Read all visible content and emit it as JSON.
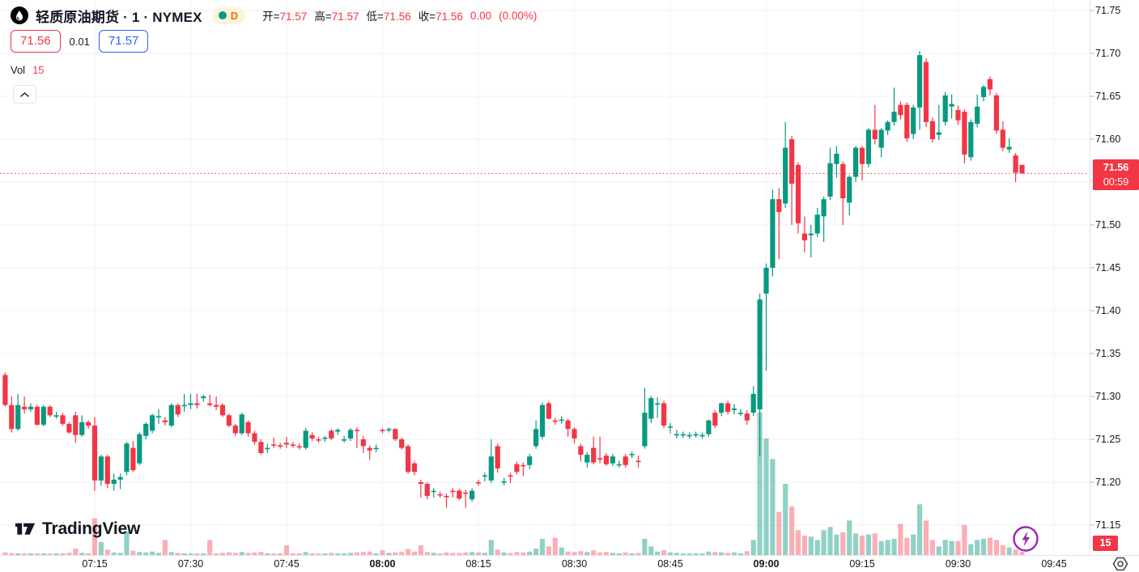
{
  "header": {
    "symbol_title": "轻质原油期货 · 1 · NYMEX",
    "data_mode_badge": "D",
    "ohlc": {
      "open_label": "开=",
      "open": "71.57",
      "high_label": "高=",
      "high": "71.57",
      "low_label": "低=",
      "low": "71.56",
      "close_label": "收=",
      "close": "71.56",
      "change": "0.00",
      "change_pct": "(0.00%)"
    },
    "sell_price": "71.56",
    "spread": "0.01",
    "buy_price": "71.57",
    "vol_label": "Vol",
    "vol_value": "15"
  },
  "watermark": {
    "brand": "TradingView"
  },
  "icons": {
    "symbol_logo": "oil-drop-icon",
    "market_status": "green-dot-icon",
    "collapse": "chevron-up-icon",
    "quick_trade": "lightning-bolt-icon",
    "axis_corner": "hexagon-target-icon"
  },
  "price_axis": {
    "labels": [
      "71.75",
      "71.70",
      "71.65",
      "71.60",
      "71.50",
      "71.45",
      "71.40",
      "71.35",
      "71.30",
      "71.25",
      "71.20",
      "71.15"
    ],
    "current_price": "71.56",
    "countdown": "00:59",
    "current_volume": "15"
  },
  "time_axis": {
    "labels": [
      "07:15",
      "07:30",
      "07:45",
      "08:00",
      "08:15",
      "08:30",
      "08:45",
      "09:00",
      "09:15",
      "09:30",
      "09:45"
    ],
    "bold_labels": [
      "08:00",
      "09:00"
    ]
  },
  "colors": {
    "up": "#089981",
    "down": "#f23645",
    "vol_up": "rgba(8,153,129,0.45)",
    "vol_down": "rgba(242,54,69,0.4)",
    "grid": "#f0f2f7",
    "axis_border": "#e0e3eb",
    "axis_text": "#131722",
    "price_line": "#f23645",
    "buy_blue": "#2962ff",
    "badge_orange": "#ee7100",
    "accent_purple": "#9c27b0"
  },
  "chart_data": {
    "type": "candlestick_with_volume",
    "symbol": "轻质原油期货",
    "exchange": "NYMEX",
    "interval": "1 minute",
    "title": "轻质原油期货 · 1 · NYMEX",
    "price_axis_range": [
      71.13,
      71.76
    ],
    "grid_step": 0.05,
    "start_time": "07:01",
    "interval_minutes": 1,
    "current_price_line": 71.56,
    "ohlc_note": "candles are [open, high, low, close]",
    "candles": [
      [
        71.325,
        71.328,
        71.288,
        71.29
      ],
      [
        71.29,
        71.3,
        71.258,
        71.262
      ],
      [
        71.262,
        71.303,
        71.26,
        71.29
      ],
      [
        71.288,
        71.3,
        71.28,
        71.285
      ],
      [
        71.285,
        71.292,
        71.282,
        71.288
      ],
      [
        71.288,
        71.29,
        71.266,
        71.267
      ],
      [
        71.267,
        71.29,
        71.265,
        71.288
      ],
      [
        71.288,
        71.29,
        71.276,
        71.278
      ],
      [
        71.278,
        71.282,
        71.274,
        71.278
      ],
      [
        71.278,
        71.281,
        71.266,
        71.268
      ],
      [
        71.268,
        71.27,
        71.256,
        71.258
      ],
      [
        71.278,
        71.282,
        71.246,
        71.255
      ],
      [
        71.255,
        71.278,
        71.253,
        71.27
      ],
      [
        71.27,
        71.272,
        71.262,
        71.266
      ],
      [
        71.266,
        71.276,
        71.19,
        71.202
      ],
      [
        71.202,
        71.232,
        71.196,
        71.23
      ],
      [
        71.23,
        71.232,
        71.193,
        71.198
      ],
      [
        71.198,
        71.21,
        71.19,
        71.203
      ],
      [
        71.203,
        71.21,
        71.192,
        71.206
      ],
      [
        71.212,
        71.247,
        71.208,
        71.245
      ],
      [
        71.24,
        71.248,
        71.212,
        71.214
      ],
      [
        71.222,
        71.258,
        71.22,
        71.256
      ],
      [
        71.254,
        71.27,
        71.25,
        71.268
      ],
      [
        71.26,
        71.28,
        71.257,
        71.278
      ],
      [
        71.277,
        71.285,
        71.268,
        71.277
      ],
      [
        71.272,
        71.276,
        71.266,
        71.27
      ],
      [
        71.266,
        71.292,
        71.264,
        71.29
      ],
      [
        71.29,
        71.292,
        71.276,
        71.279
      ],
      [
        71.289,
        71.303,
        71.282,
        71.29
      ],
      [
        71.29,
        71.303,
        71.285,
        71.292
      ],
      [
        71.292,
        71.303,
        71.286,
        71.29
      ],
      [
        71.298,
        71.302,
        71.294,
        71.3
      ],
      [
        71.292,
        71.302,
        71.288,
        71.29
      ],
      [
        71.29,
        71.3,
        71.284,
        71.288
      ],
      [
        71.29,
        71.292,
        71.276,
        71.278
      ],
      [
        71.278,
        71.28,
        71.264,
        71.266
      ],
      [
        71.266,
        71.268,
        71.254,
        71.257
      ],
      [
        71.257,
        71.281,
        71.255,
        71.279
      ],
      [
        71.27,
        71.272,
        71.253,
        71.257
      ],
      [
        71.257,
        71.26,
        71.244,
        71.247
      ],
      [
        71.247,
        71.25,
        71.232,
        71.234
      ],
      [
        71.24,
        71.245,
        71.234,
        71.24
      ],
      [
        71.244,
        71.252,
        71.24,
        71.243
      ],
      [
        71.243,
        71.246,
        71.239,
        71.242
      ],
      [
        71.246,
        71.253,
        71.24,
        71.244
      ],
      [
        71.244,
        71.247,
        71.24,
        71.243
      ],
      [
        71.242,
        71.245,
        71.238,
        71.241
      ],
      [
        71.24,
        71.263,
        71.238,
        71.26
      ],
      [
        71.255,
        71.258,
        71.248,
        71.251
      ],
      [
        71.25,
        71.253,
        71.246,
        71.249
      ],
      [
        71.251,
        71.254,
        71.247,
        71.252
      ],
      [
        71.26,
        71.262,
        71.249,
        71.251
      ],
      [
        71.259,
        71.263,
        71.255,
        71.261
      ],
      [
        71.25,
        71.254,
        71.246,
        71.25
      ],
      [
        71.251,
        71.263,
        71.248,
        71.261
      ],
      [
        71.261,
        71.264,
        71.24,
        71.26
      ],
      [
        71.25,
        71.254,
        71.234,
        71.242
      ],
      [
        71.24,
        71.243,
        71.226,
        71.237
      ],
      [
        71.239,
        71.244,
        71.235,
        71.24
      ],
      [
        71.261,
        71.263,
        71.257,
        71.26
      ],
      [
        71.262,
        71.264,
        71.258,
        71.262
      ],
      [
        71.262,
        71.263,
        71.248,
        71.25
      ],
      [
        71.25,
        71.252,
        71.238,
        71.24
      ],
      [
        71.242,
        71.244,
        71.21,
        71.212
      ],
      [
        71.222,
        71.225,
        71.208,
        71.212
      ],
      [
        71.2,
        71.203,
        71.182,
        71.198
      ],
      [
        71.198,
        71.2,
        71.18,
        71.184
      ],
      [
        71.19,
        71.193,
        71.182,
        71.19
      ],
      [
        71.186,
        71.189,
        71.182,
        71.185
      ],
      [
        71.184,
        71.187,
        71.17,
        71.183
      ],
      [
        71.19,
        71.193,
        71.182,
        71.189
      ],
      [
        71.19,
        71.192,
        71.179,
        71.181
      ],
      [
        71.188,
        71.191,
        71.17,
        71.187
      ],
      [
        71.18,
        71.193,
        71.177,
        71.19
      ],
      [
        71.2,
        71.203,
        71.196,
        71.199
      ],
      [
        71.208,
        71.211,
        71.201,
        71.208
      ],
      [
        71.202,
        71.25,
        71.199,
        71.23
      ],
      [
        71.242,
        71.245,
        71.211,
        71.216
      ],
      [
        71.2,
        71.205,
        71.196,
        71.201
      ],
      [
        71.208,
        71.211,
        71.199,
        71.207
      ],
      [
        71.221,
        71.224,
        71.209,
        71.212
      ],
      [
        71.22,
        71.223,
        71.207,
        71.219
      ],
      [
        71.22,
        71.233,
        71.215,
        71.23
      ],
      [
        71.242,
        71.272,
        71.239,
        71.262
      ],
      [
        71.253,
        71.293,
        71.25,
        71.29
      ],
      [
        71.292,
        71.294,
        71.273,
        71.274
      ],
      [
        71.272,
        71.275,
        71.267,
        71.271
      ],
      [
        71.272,
        71.277,
        71.268,
        71.273
      ],
      [
        71.272,
        71.274,
        71.253,
        71.262
      ],
      [
        71.262,
        71.264,
        71.245,
        71.251
      ],
      [
        71.242,
        71.245,
        71.224,
        71.232
      ],
      [
        71.223,
        71.235,
        71.217,
        71.232
      ],
      [
        71.24,
        71.253,
        71.221,
        71.223
      ],
      [
        71.228,
        71.253,
        71.222,
        71.227
      ],
      [
        71.231,
        71.234,
        71.219,
        71.221
      ],
      [
        71.222,
        71.233,
        71.219,
        71.23
      ],
      [
        71.221,
        71.225,
        71.217,
        71.221
      ],
      [
        71.23,
        71.233,
        71.217,
        71.22
      ],
      [
        71.233,
        71.236,
        71.228,
        71.233
      ],
      [
        71.225,
        71.231,
        71.217,
        71.224
      ],
      [
        71.242,
        71.31,
        71.239,
        71.281
      ],
      [
        71.274,
        71.301,
        71.269,
        71.298
      ],
      [
        71.292,
        71.299,
        71.275,
        71.292
      ],
      [
        71.292,
        71.295,
        71.263,
        71.266
      ],
      [
        71.265,
        71.269,
        71.257,
        71.265
      ],
      [
        71.256,
        71.261,
        71.251,
        71.256
      ],
      [
        71.256,
        71.259,
        71.252,
        71.256
      ],
      [
        71.255,
        71.258,
        71.251,
        71.255
      ],
      [
        71.256,
        71.259,
        71.252,
        71.256
      ],
      [
        71.255,
        71.258,
        71.251,
        71.255
      ],
      [
        71.256,
        71.273,
        71.253,
        71.272
      ],
      [
        71.281,
        71.284,
        71.263,
        71.266
      ],
      [
        71.281,
        71.293,
        71.277,
        71.292
      ],
      [
        71.292,
        71.295,
        71.279,
        71.282
      ],
      [
        71.284,
        71.291,
        71.279,
        71.286
      ],
      [
        71.281,
        71.285,
        71.277,
        71.281
      ],
      [
        71.28,
        71.284,
        71.267,
        71.272
      ],
      [
        71.281,
        71.312,
        71.277,
        71.303
      ],
      [
        71.285,
        71.42,
        71.23,
        71.413
      ],
      [
        71.42,
        71.455,
        71.33,
        71.45
      ],
      [
        71.45,
        71.541,
        71.44,
        71.53
      ],
      [
        71.53,
        71.543,
        71.46,
        71.515
      ],
      [
        71.525,
        71.62,
        71.52,
        71.59
      ],
      [
        71.6,
        71.604,
        71.5,
        71.548
      ],
      [
        71.57,
        71.573,
        71.49,
        71.502
      ],
      [
        71.49,
        71.51,
        71.468,
        71.482
      ],
      [
        71.488,
        71.5,
        71.462,
        71.49
      ],
      [
        71.49,
        71.52,
        71.486,
        71.512
      ],
      [
        71.51,
        71.533,
        71.48,
        71.53
      ],
      [
        71.533,
        71.59,
        71.529,
        71.572
      ],
      [
        71.571,
        71.592,
        71.555,
        71.583
      ],
      [
        71.571,
        71.574,
        71.5,
        71.531
      ],
      [
        71.526,
        71.558,
        71.511,
        71.556
      ],
      [
        71.556,
        71.592,
        71.55,
        71.59
      ],
      [
        71.59,
        71.592,
        71.552,
        71.571
      ],
      [
        71.571,
        71.613,
        71.567,
        71.611
      ],
      [
        71.611,
        71.64,
        71.594,
        71.6
      ],
      [
        71.59,
        71.613,
        71.579,
        71.611
      ],
      [
        71.61,
        71.622,
        71.605,
        71.62
      ],
      [
        71.62,
        71.66,
        71.616,
        71.632
      ],
      [
        71.64,
        71.644,
        71.623,
        71.628
      ],
      [
        71.64,
        71.643,
        71.597,
        71.601
      ],
      [
        71.606,
        71.64,
        71.6,
        71.637
      ],
      [
        71.637,
        71.703,
        71.611,
        71.698
      ],
      [
        71.69,
        71.694,
        71.614,
        71.62
      ],
      [
        71.621,
        71.625,
        71.596,
        71.6
      ],
      [
        71.605,
        71.64,
        71.599,
        71.608
      ],
      [
        71.62,
        71.655,
        71.616,
        71.651
      ],
      [
        71.638,
        71.652,
        71.624,
        71.641
      ],
      [
        71.634,
        71.639,
        71.617,
        71.622
      ],
      [
        71.632,
        71.635,
        71.572,
        71.582
      ],
      [
        71.579,
        71.623,
        71.575,
        71.62
      ],
      [
        71.618,
        71.652,
        71.614,
        71.638
      ],
      [
        71.649,
        71.663,
        71.644,
        71.661
      ],
      [
        71.67,
        71.673,
        71.651,
        71.658
      ],
      [
        71.651,
        71.654,
        71.606,
        71.61
      ],
      [
        71.611,
        71.621,
        71.586,
        71.59
      ],
      [
        71.588,
        71.601,
        71.584,
        71.591
      ],
      [
        71.581,
        71.584,
        71.55,
        71.561
      ],
      [
        71.57,
        71.57,
        71.56,
        71.56
      ]
    ],
    "volumes": [
      12,
      9,
      8,
      6,
      5,
      7,
      6,
      5,
      4,
      6,
      10,
      30,
      10,
      8,
      170,
      60,
      25,
      12,
      10,
      110,
      20,
      14,
      12,
      16,
      10,
      70,
      14,
      10,
      8,
      6,
      6,
      5,
      70,
      6,
      10,
      12,
      10,
      14,
      10,
      12,
      14,
      8,
      6,
      5,
      45,
      5,
      5,
      14,
      8,
      6,
      5,
      10,
      6,
      5,
      10,
      12,
      14,
      16,
      8,
      22,
      10,
      12,
      14,
      28,
      16,
      45,
      14,
      10,
      6,
      12,
      10,
      10,
      12,
      14,
      12,
      10,
      70,
      25,
      12,
      10,
      14,
      12,
      16,
      30,
      75,
      40,
      80,
      35,
      16,
      14,
      18,
      14,
      22,
      12,
      14,
      10,
      8,
      12,
      6,
      10,
      75,
      40,
      16,
      22,
      12,
      10,
      6,
      5,
      6,
      5,
      16,
      14,
      12,
      10,
      12,
      8,
      18,
      70,
      660,
      540,
      445,
      200,
      330,
      225,
      115,
      90,
      85,
      70,
      115,
      130,
      95,
      105,
      160,
      100,
      90,
      95,
      100,
      65,
      70,
      75,
      145,
      80,
      95,
      235,
      160,
      70,
      40,
      70,
      65,
      65,
      140,
      50,
      70,
      75,
      80,
      70,
      45,
      35,
      25,
      15
    ],
    "volume_scale_max": 660,
    "last_volume": 15,
    "legend_position": "top-left",
    "grid": true
  }
}
